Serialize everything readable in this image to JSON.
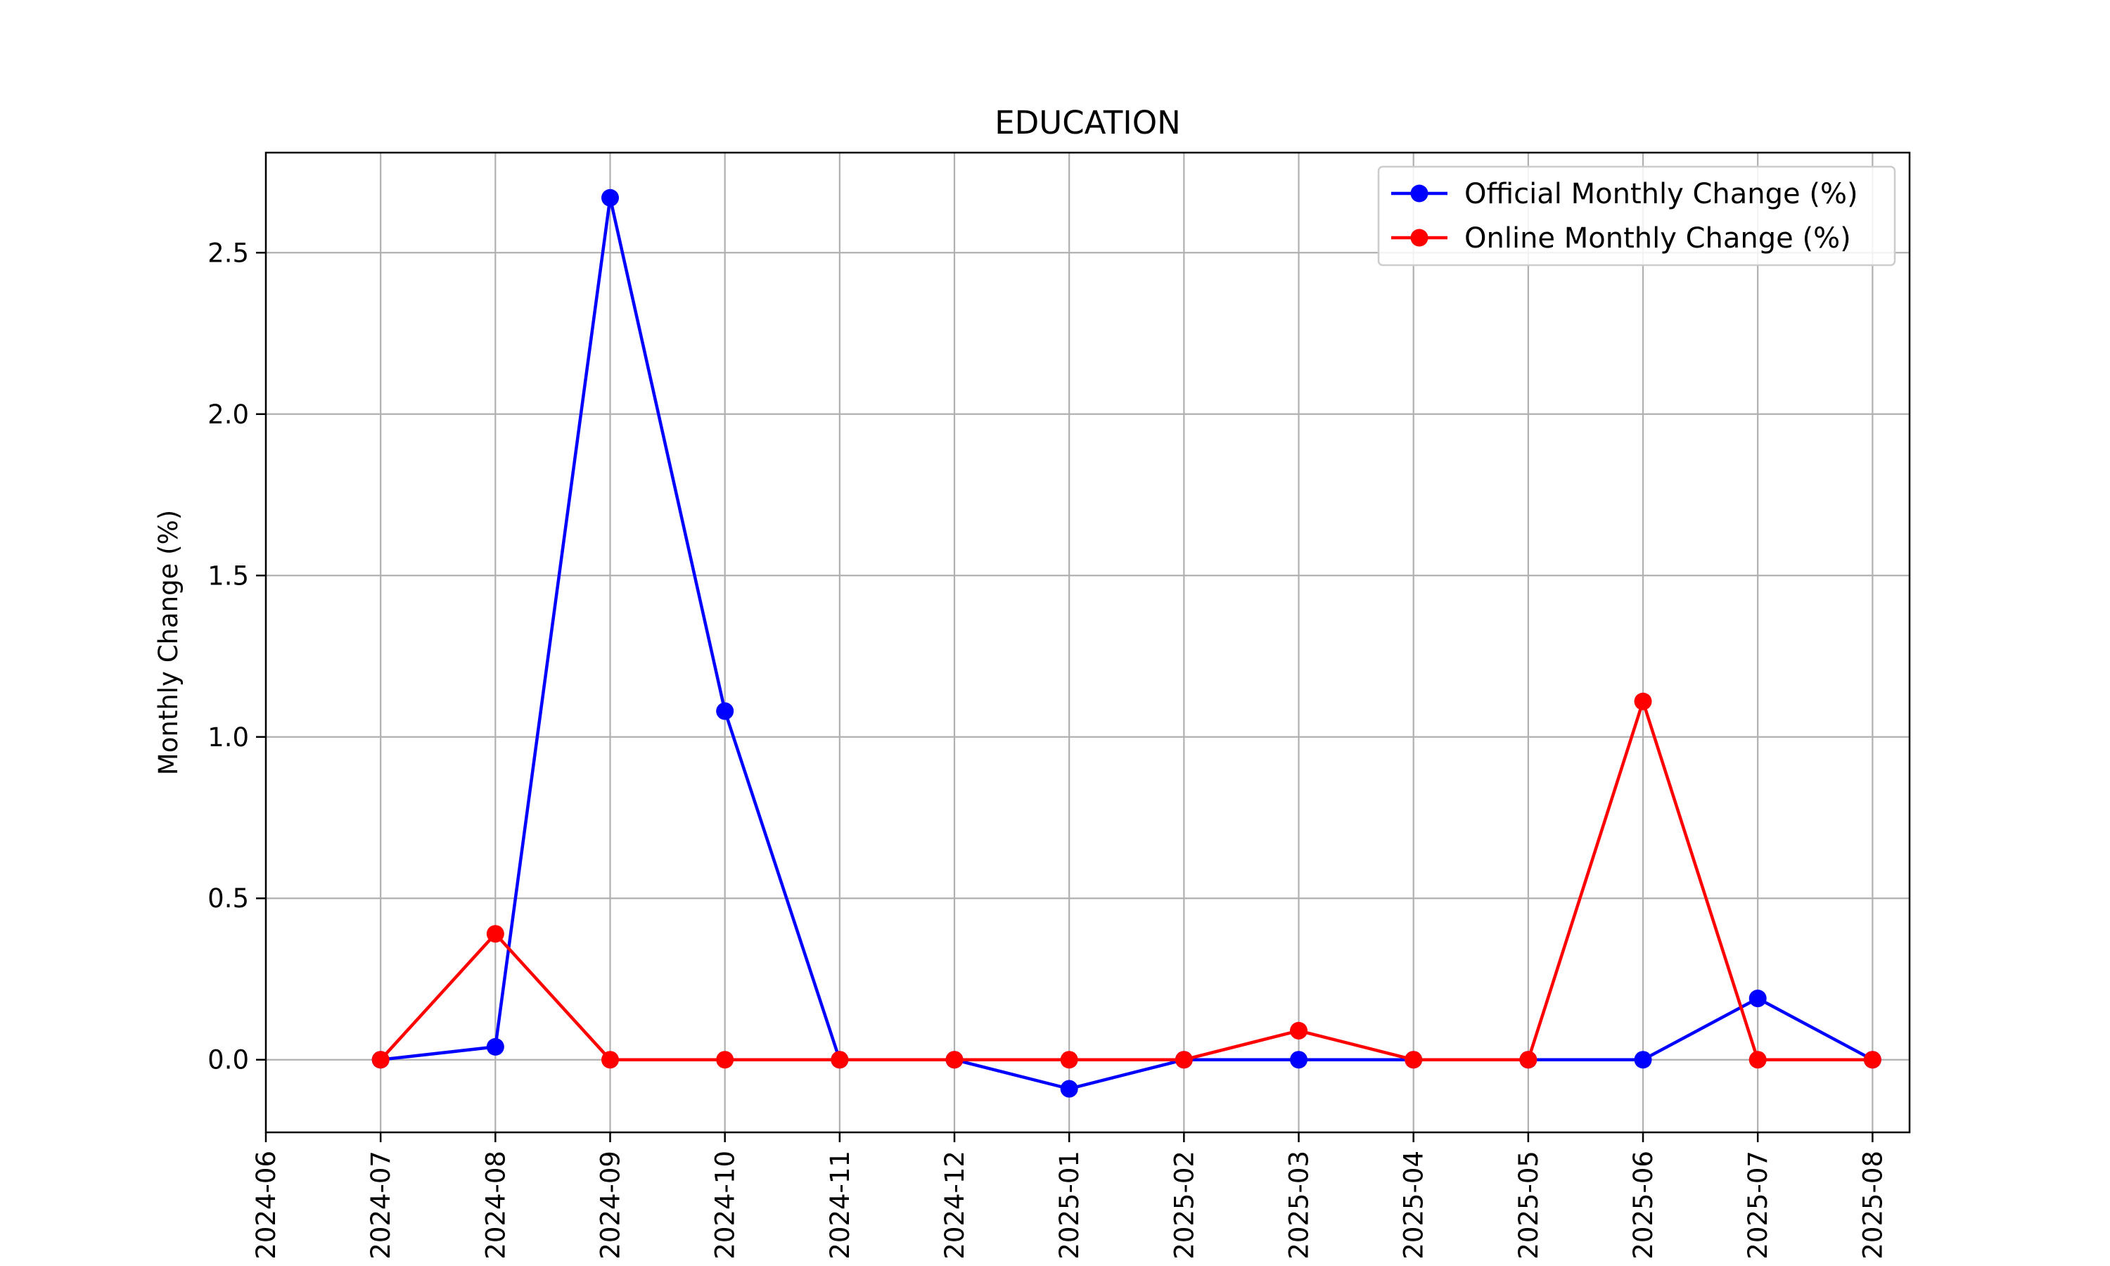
{
  "chart_data": {
    "type": "line",
    "title": "EDUCATION",
    "xlabel": "",
    "ylabel": "Monthly Change (%)",
    "x_ticks": [
      "2024-06",
      "2024-07",
      "2024-08",
      "2024-09",
      "2024-10",
      "2024-11",
      "2024-12",
      "2025-01",
      "2025-02",
      "2025-03",
      "2025-04",
      "2025-05",
      "2025-06",
      "2025-07",
      "2025-08"
    ],
    "y_ticks": [
      "0.0",
      "0.5",
      "1.0",
      "1.5",
      "2.0",
      "2.5"
    ],
    "ylim": [
      -0.225,
      2.81
    ],
    "xlim": [
      "2024-06",
      "2025-08-11"
    ],
    "grid": true,
    "legend_position": "top-right",
    "x": [
      "2024-07",
      "2024-08",
      "2024-09",
      "2024-10",
      "2024-11",
      "2024-12",
      "2025-01",
      "2025-02",
      "2025-03",
      "2025-04",
      "2025-05",
      "2025-06",
      "2025-07",
      "2025-08"
    ],
    "series": [
      {
        "name": "Official Monthly Change (%)",
        "color": "#0000ff",
        "values": [
          0.0,
          0.04,
          2.67,
          1.08,
          0.0,
          0.0,
          -0.09,
          0.0,
          0.0,
          0.0,
          0.0,
          0.0,
          0.19,
          0.0
        ]
      },
      {
        "name": "Online Monthly Change (%)",
        "color": "#ff0000",
        "values": [
          0.0,
          0.39,
          0.0,
          0.0,
          0.0,
          0.0,
          0.0,
          0.0,
          0.09,
          0.0,
          0.0,
          1.11,
          0.0,
          0.0
        ]
      }
    ]
  }
}
